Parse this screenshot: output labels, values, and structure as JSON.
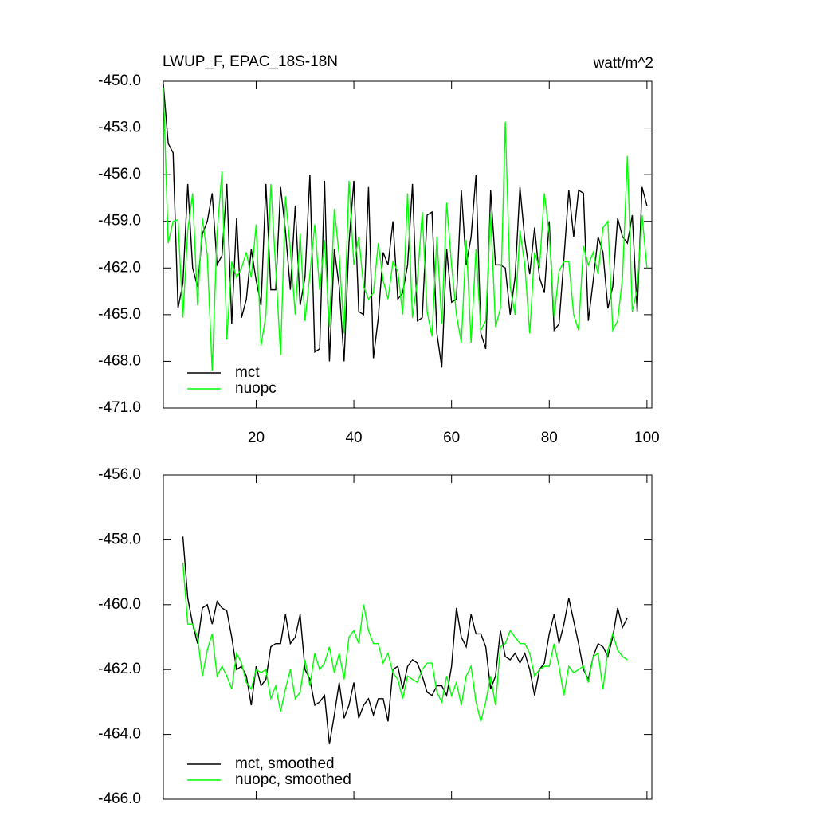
{
  "chart_data": [
    {
      "type": "line",
      "title": "LWUP_F, EPAC_18S-18N",
      "units": "watt/m^2",
      "x": [
        1,
        2,
        3,
        4,
        5,
        6,
        7,
        8,
        9,
        10,
        11,
        12,
        13,
        14,
        15,
        16,
        17,
        18,
        19,
        20,
        21,
        22,
        23,
        24,
        25,
        26,
        27,
        28,
        29,
        30,
        31,
        32,
        33,
        34,
        35,
        36,
        37,
        38,
        39,
        40,
        41,
        42,
        43,
        44,
        45,
        46,
        47,
        48,
        49,
        50,
        51,
        52,
        53,
        54,
        55,
        56,
        57,
        58,
        59,
        60,
        61,
        62,
        63,
        64,
        65,
        66,
        67,
        68,
        69,
        70,
        71,
        72,
        73,
        74,
        75,
        76,
        77,
        78,
        79,
        80,
        81,
        82,
        83,
        84,
        85,
        86,
        87,
        88,
        89,
        90,
        91,
        92,
        93,
        94,
        95,
        96,
        97,
        98,
        99,
        100
      ],
      "series": [
        {
          "name": "mct",
          "color": "#000000",
          "values": [
            -450.2,
            -454.0,
            -454.6,
            -464.6,
            -463.0,
            -456.6,
            -462.0,
            -463.2,
            -459.8,
            -459.0,
            -457.2,
            -461.8,
            -461.2,
            -456.6,
            -465.6,
            -458.8,
            -465.2,
            -464.0,
            -460.8,
            -462.8,
            -464.4,
            -456.6,
            -463.4,
            -463.4,
            -456.8,
            -459.6,
            -463.4,
            -458.0,
            -464.4,
            -462.6,
            -456.0,
            -467.4,
            -467.2,
            -456.4,
            -468.0,
            -460.8,
            -463.2,
            -468.0,
            -460.4,
            -456.4,
            -464.8,
            -465.0,
            -456.8,
            -467.8,
            -465.2,
            -461.0,
            -461.8,
            -459.0,
            -464.0,
            -463.6,
            -461.8,
            -456.6,
            -465.4,
            -465.2,
            -458.6,
            -458.4,
            -466.2,
            -468.4,
            -460.8,
            -464.2,
            -464.0,
            -457.0,
            -461.8,
            -460.0,
            -456.0,
            -466.2,
            -467.2,
            -457.0,
            -461.8,
            -461.8,
            -462.0,
            -465.0,
            -462.6,
            -456.8,
            -460.2,
            -462.4,
            -459.4,
            -462.6,
            -463.6,
            -459.0,
            -466.0,
            -465.6,
            -461.4,
            -457.0,
            -460.0,
            -457.0,
            -457.2,
            -465.4,
            -462.8,
            -460.0,
            -461.0,
            -464.6,
            -463.2,
            -458.8,
            -460.0,
            -460.4,
            -458.6,
            -464.8,
            -456.8,
            -458.0
          ]
        },
        {
          "name": "nuopc",
          "color": "#00ff00",
          "values": [
            -450.4,
            -460.4,
            -459.0,
            -458.9,
            -465.2,
            -459.6,
            -457.2,
            -464.4,
            -458.8,
            -461.2,
            -468.6,
            -459.8,
            -455.8,
            -466.6,
            -461.6,
            -462.6,
            -462.0,
            -461.0,
            -462.6,
            -459.2,
            -467.0,
            -465.0,
            -456.6,
            -462.0,
            -467.6,
            -457.4,
            -460.8,
            -465.0,
            -459.8,
            -465.4,
            -462.4,
            -459.2,
            -463.4,
            -460.2,
            -465.8,
            -458.2,
            -461.2,
            -466.2,
            -456.4,
            -461.8,
            -460.0,
            -463.2,
            -464.0,
            -463.6,
            -460.4,
            -462.8,
            -464.0,
            -461.6,
            -462.2,
            -465.0,
            -457.2,
            -465.2,
            -462.8,
            -458.4,
            -464.8,
            -466.4,
            -460.0,
            -465.6,
            -457.8,
            -461.8,
            -465.0,
            -466.8,
            -460.2,
            -466.8,
            -460.8,
            -466.0,
            -465.4,
            -458.4,
            -465.8,
            -464.6,
            -452.6,
            -463.2,
            -465.0,
            -459.6,
            -461.8,
            -466.2,
            -461.0,
            -462.0,
            -457.2,
            -459.8,
            -465.2,
            -462.2,
            -461.6,
            -461.6,
            -465.0,
            -466.0,
            -460.6,
            -461.8,
            -461.0,
            -462.4,
            -459.4,
            -459.0,
            -466.0,
            -465.4,
            -462.6,
            -454.8,
            -464.8,
            -463.4,
            -458.6,
            -462.0
          ]
        }
      ],
      "xlim": [
        1,
        101
      ],
      "xticks": [
        20,
        40,
        60,
        80,
        100
      ],
      "ylim": [
        -471,
        -450
      ],
      "yticks": [
        {
          "value": -471,
          "label": "-471.0"
        },
        {
          "value": -468,
          "label": "-468.0"
        },
        {
          "value": -465,
          "label": "-465.0"
        },
        {
          "value": -462,
          "label": "-462.0"
        },
        {
          "value": -459,
          "label": "-459.0"
        },
        {
          "value": -456,
          "label": "-456.0"
        },
        {
          "value": -453,
          "label": "-453.0"
        },
        {
          "value": -450,
          "label": "-450.0"
        }
      ],
      "legend": "lower left"
    },
    {
      "type": "line",
      "x": [
        5,
        6,
        7,
        8,
        9,
        10,
        11,
        12,
        13,
        14,
        15,
        16,
        17,
        18,
        19,
        20,
        21,
        22,
        23,
        24,
        25,
        26,
        27,
        28,
        29,
        30,
        31,
        32,
        33,
        34,
        35,
        36,
        37,
        38,
        39,
        40,
        41,
        42,
        43,
        44,
        45,
        46,
        47,
        48,
        49,
        50,
        51,
        52,
        53,
        54,
        55,
        56,
        57,
        58,
        59,
        60,
        61,
        62,
        63,
        64,
        65,
        66,
        67,
        68,
        69,
        70,
        71,
        72,
        73,
        74,
        75,
        76,
        77,
        78,
        79,
        80,
        81,
        82,
        83,
        84,
        85,
        86,
        87,
        88,
        89,
        90,
        91,
        92,
        93,
        94,
        95,
        96
      ],
      "series": [
        {
          "name": "mct, smoothed",
          "color": "#000000",
          "values": [
            -457.9,
            -459.8,
            -460.6,
            -461.2,
            -460.1,
            -460.0,
            -460.6,
            -459.9,
            -460.1,
            -460.2,
            -461.0,
            -462.0,
            -461.9,
            -462.2,
            -463.1,
            -461.9,
            -462.5,
            -462.3,
            -461.3,
            -461.2,
            -461.2,
            -460.3,
            -461.2,
            -461.0,
            -460.3,
            -462.0,
            -462.3,
            -463.1,
            -463.0,
            -462.8,
            -464.3,
            -463.4,
            -462.4,
            -463.5,
            -463.1,
            -462.4,
            -463.5,
            -463.1,
            -462.9,
            -463.4,
            -462.9,
            -462.9,
            -463.6,
            -462.0,
            -461.9,
            -462.6,
            -461.9,
            -461.7,
            -461.8,
            -462.2,
            -462.7,
            -462.8,
            -462.5,
            -462.5,
            -462.8,
            -461.9,
            -460.1,
            -461.0,
            -461.3,
            -460.3,
            -460.9,
            -460.9,
            -461.3,
            -462.6,
            -462.2,
            -460.8,
            -461.6,
            -461.7,
            -461.5,
            -461.8,
            -461.5,
            -462.0,
            -462.8,
            -462.0,
            -461.8,
            -460.9,
            -460.3,
            -461.2,
            -460.6,
            -459.8,
            -460.5,
            -461.2,
            -462.0,
            -462.3,
            -461.6,
            -461.2,
            -461.3,
            -461.6,
            -461.0,
            -460.1,
            -460.7,
            -460.4
          ]
        },
        {
          "name": "nuopc, smoothed",
          "color": "#00ff00",
          "values": [
            -458.7,
            -460.6,
            -460.6,
            -461.0,
            -462.2,
            -461.4,
            -460.9,
            -462.2,
            -461.9,
            -462.2,
            -462.6,
            -461.5,
            -461.8,
            -462.4,
            -462.6,
            -462.0,
            -462.1,
            -462.0,
            -462.9,
            -462.5,
            -463.3,
            -462.6,
            -462.0,
            -462.9,
            -462.7,
            -461.7,
            -462.5,
            -461.5,
            -462.0,
            -461.8,
            -461.3,
            -462.1,
            -461.5,
            -462.3,
            -461.0,
            -460.8,
            -461.2,
            -460.0,
            -460.8,
            -461.2,
            -461.2,
            -461.8,
            -461.5,
            -462.1,
            -462.3,
            -462.9,
            -462.2,
            -462.3,
            -462.4,
            -462.0,
            -461.8,
            -461.8,
            -462.7,
            -463.0,
            -462.2,
            -462.8,
            -462.4,
            -463.1,
            -462.2,
            -461.9,
            -463.0,
            -463.6,
            -463.0,
            -462.2,
            -463.1,
            -461.3,
            -461.2,
            -460.8,
            -461.0,
            -461.2,
            -461.2,
            -461.5,
            -462.2,
            -462.0,
            -461.9,
            -461.9,
            -461.2,
            -461.9,
            -462.8,
            -461.9,
            -462.1,
            -462.0,
            -461.9,
            -462.4,
            -461.6,
            -461.5,
            -462.6,
            -461.4,
            -460.9,
            -461.4,
            -461.6,
            -461.7
          ]
        }
      ],
      "xlim": [
        1,
        101
      ],
      "xticks": [
        20,
        40,
        60,
        80,
        100
      ],
      "ylim": [
        -466,
        -456
      ],
      "yticks": [
        {
          "value": -466,
          "label": "-466.0"
        },
        {
          "value": -464,
          "label": "-464.0"
        },
        {
          "value": -462,
          "label": "-462.0"
        },
        {
          "value": -460,
          "label": "-460.0"
        },
        {
          "value": -458,
          "label": "-458.0"
        },
        {
          "value": -456,
          "label": "-456.0"
        }
      ],
      "legend": "lower left"
    }
  ]
}
